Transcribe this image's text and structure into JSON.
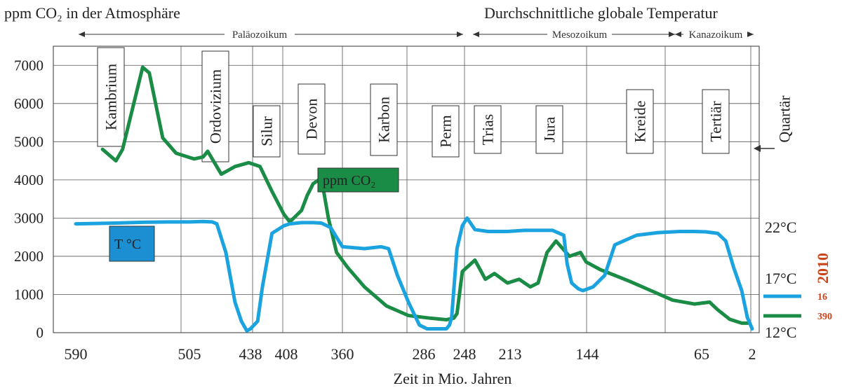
{
  "chart_data": {
    "type": "line",
    "title_left": "ppm CO₂ in der Atmosphäre",
    "title_right": "Durchschnittliche globale Temperatur",
    "xlabel": "Zeit in Mio. Jahren",
    "x_ticks": [
      "590",
      "505",
      "438",
      "408",
      "360",
      "286",
      "248",
      "213",
      "144",
      "65",
      "2"
    ],
    "y_left_ticks": [
      0,
      1000,
      2000,
      3000,
      4000,
      5000,
      6000,
      7000
    ],
    "ylim": [
      0,
      7500
    ],
    "y_right_ticks": [
      "12°C",
      "17°C",
      "22°C"
    ],
    "eras": [
      {
        "name": "Paläozoikum"
      },
      {
        "name": "Mesozoikum"
      },
      {
        "name": "Kanazoikum"
      }
    ],
    "periods": [
      "Kambrium",
      "Ordovizium",
      "Silur",
      "Devon",
      "Karbon",
      "Perm",
      "Trias",
      "Jura",
      "Kreide",
      "Tertiär",
      "Quartär"
    ],
    "series": [
      {
        "name": "ppm CO₂",
        "color": "#1a8c45",
        "x": [
          570,
          560,
          555,
          540,
          535,
          525,
          515,
          500,
          490,
          485,
          470,
          455,
          440,
          430,
          420,
          410,
          405,
          395,
          390,
          385,
          378,
          372,
          365,
          355,
          340,
          320,
          300,
          280,
          265,
          258,
          255,
          250,
          240,
          232,
          225,
          215,
          205,
          195,
          188,
          180,
          172,
          160,
          150,
          145,
          135,
          115,
          100,
          85,
          70,
          55,
          45,
          30,
          15,
          5
        ],
        "y": [
          4800,
          4500,
          4800,
          6950,
          6800,
          5100,
          4700,
          4550,
          4600,
          4750,
          4150,
          4350,
          4450,
          4350,
          3700,
          3100,
          2900,
          3200,
          3600,
          3900,
          4050,
          3000,
          2100,
          1700,
          1200,
          700,
          450,
          380,
          340,
          380,
          500,
          1600,
          1900,
          1400,
          1550,
          1300,
          1400,
          1200,
          1300,
          2100,
          2400,
          2000,
          2100,
          1850,
          1650,
          1350,
          1100,
          850,
          750,
          800,
          600,
          350,
          250,
          250
        ]
      },
      {
        "name": "T °C",
        "color": "#1ba3df",
        "x": [
          590,
          560,
          540,
          520,
          505,
          490,
          480,
          475,
          465,
          455,
          448,
          442,
          438,
          432,
          428,
          420,
          410,
          405,
          395,
          385,
          378,
          370,
          360,
          340,
          325,
          318,
          310,
          300,
          290,
          283,
          279,
          275,
          270,
          265,
          262,
          260,
          255,
          250,
          246,
          240,
          230,
          215,
          200,
          175,
          165,
          162,
          158,
          152,
          148,
          140,
          132,
          125,
          110,
          95,
          80,
          70,
          60,
          45,
          35,
          25,
          15,
          8,
          2
        ],
        "y": [
          2850,
          2870,
          2890,
          2900,
          2900,
          2910,
          2900,
          2850,
          2100,
          800,
          300,
          50,
          100,
          300,
          1200,
          2600,
          2800,
          2850,
          2880,
          2880,
          2870,
          2750,
          2250,
          2200,
          2250,
          2200,
          1500,
          800,
          200,
          100,
          100,
          100,
          100,
          100,
          200,
          400,
          2200,
          2800,
          3000,
          2700,
          2650,
          2650,
          2680,
          2680,
          2550,
          1800,
          1300,
          1150,
          1100,
          1200,
          1500,
          2300,
          2550,
          2620,
          2650,
          2650,
          2640,
          2600,
          2400,
          1700,
          1100,
          400,
          100
        ]
      }
    ],
    "legend": {
      "year": "2010",
      "temp_value": "16",
      "co2_value": "390"
    }
  }
}
